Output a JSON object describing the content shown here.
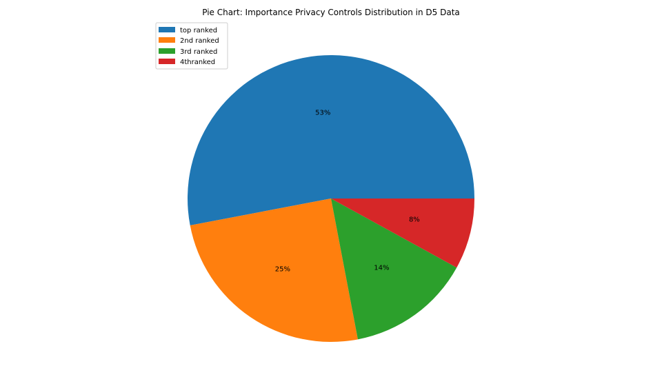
{
  "chart_data": {
    "type": "pie",
    "title": "Pie Chart: Importance Privacy Controls Distribution in D5 Data",
    "categories": [
      "top ranked",
      "2nd ranked",
      "3rd ranked",
      "4thranked"
    ],
    "values": [
      53,
      25,
      14,
      8
    ],
    "labels": [
      "53%",
      "25%",
      "14%",
      "8%"
    ],
    "colors": [
      "#1f77b4",
      "#ff7f0e",
      "#2ca02c",
      "#d62728"
    ],
    "start_angle_deg": 0,
    "direction": "counterclockwise",
    "legend_position": "upper-left"
  }
}
